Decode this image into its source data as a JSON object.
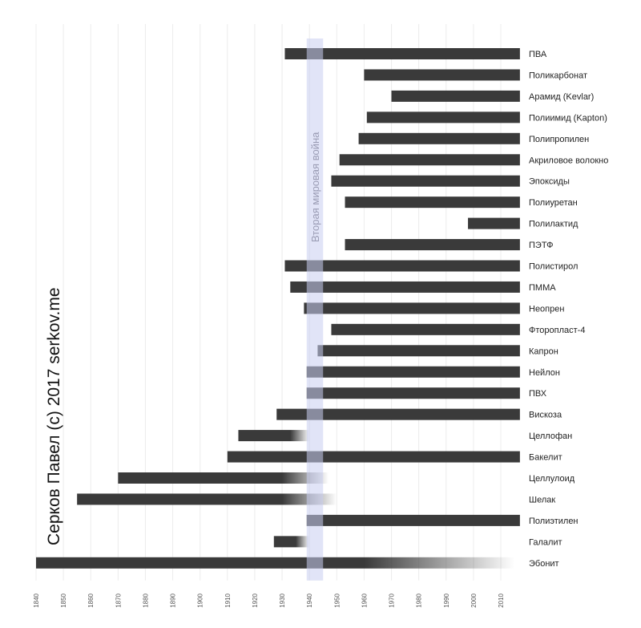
{
  "chart_data": {
    "type": "bar",
    "subtype": "timeline",
    "title": "",
    "credit": "Серков Павел (c) 2017 serkov.me",
    "xlim": [
      1840,
      2017
    ],
    "xticks": [
      "1840",
      "1850",
      "1860",
      "1870",
      "1880",
      "1890",
      "1900",
      "1910",
      "1920",
      "1930",
      "1940",
      "1950",
      "1960",
      "1970",
      "1980",
      "1990",
      "2000",
      "2010"
    ],
    "grid": true,
    "highlight": {
      "label": "Вторая мировая война",
      "start": 1939,
      "end": 1945,
      "color": "#c9cdf0"
    },
    "bar_color": "#3a3a3a",
    "series": [
      {
        "name": "ПВА",
        "start": 1931,
        "end": 2017
      },
      {
        "name": "Поликарбонат",
        "start": 1960,
        "end": 2017
      },
      {
        "name": "Арамид (Kevlar)",
        "start": 1970,
        "end": 2017
      },
      {
        "name": "Полиимид (Kapton)",
        "start": 1961,
        "end": 2017
      },
      {
        "name": "Полипропилен",
        "start": 1958,
        "end": 2017
      },
      {
        "name": "Акриловое волокно",
        "start": 1951,
        "end": 2017
      },
      {
        "name": "Эпоксиды",
        "start": 1948,
        "end": 2017
      },
      {
        "name": "Полиуретан",
        "start": 1953,
        "end": 2017
      },
      {
        "name": "Полилактид",
        "start": 1998,
        "end": 2017
      },
      {
        "name": "ПЭТФ",
        "start": 1953,
        "end": 2017
      },
      {
        "name": "Полистирол",
        "start": 1931,
        "end": 2017
      },
      {
        "name": "ПММА",
        "start": 1933,
        "end": 2017
      },
      {
        "name": "Неопрен",
        "start": 1938,
        "end": 2017
      },
      {
        "name": "Фторопласт-4",
        "start": 1948,
        "end": 2017
      },
      {
        "name": "Капрон",
        "start": 1943,
        "end": 2017
      },
      {
        "name": "Нейлон",
        "start": 1939,
        "end": 2017
      },
      {
        "name": "ПВХ",
        "start": 1939,
        "end": 2017
      },
      {
        "name": "Вискоза",
        "start": 1928,
        "end": 2017
      },
      {
        "name": "Целлофан",
        "start": 1914,
        "end": 1940,
        "fade_from": 1933
      },
      {
        "name": "Бакелит",
        "start": 1910,
        "end": 2017
      },
      {
        "name": "Целлулоид",
        "start": 1870,
        "end": 1947,
        "fade_from": 1930
      },
      {
        "name": "Шелак",
        "start": 1855,
        "end": 1950,
        "fade_from": 1930
      },
      {
        "name": "Полиэтилен",
        "start": 1939,
        "end": 2017
      },
      {
        "name": "Галалит",
        "start": 1927,
        "end": 1940,
        "fade_from": 1935
      },
      {
        "name": "Эбонит",
        "start": 1840,
        "end": 2015,
        "fade_from": 1960
      }
    ]
  }
}
